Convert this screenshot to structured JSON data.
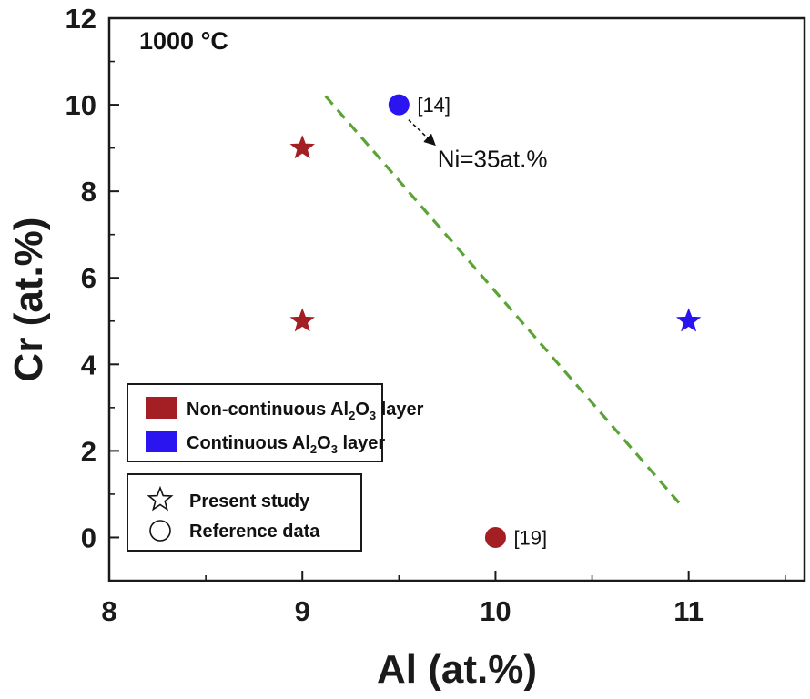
{
  "chart_data": {
    "type": "scatter",
    "title": "",
    "panel_label": "1000 °C",
    "xlabel": "Al (at.%)",
    "ylabel": "Cr (at.%)",
    "xlim": [
      8,
      11.6
    ],
    "ylim": [
      -1,
      12
    ],
    "xticks": [
      8,
      9,
      10,
      11
    ],
    "yticks": [
      0,
      2,
      4,
      6,
      8,
      10,
      12
    ],
    "grid": false,
    "colors": {
      "non_continuous": "#A31F24",
      "continuous": "#2A14F0",
      "boundary": "#5BA336",
      "axis": "#1a1a1a"
    },
    "points": [
      {
        "x": 9.0,
        "y": 9,
        "marker": "star",
        "category": "non_continuous",
        "label": ""
      },
      {
        "x": 9.0,
        "y": 5,
        "marker": "star",
        "category": "non_continuous",
        "label": ""
      },
      {
        "x": 11.0,
        "y": 5,
        "marker": "star",
        "category": "continuous",
        "label": ""
      },
      {
        "x": 9.5,
        "y": 10,
        "marker": "circle",
        "category": "continuous",
        "label": "[14]"
      },
      {
        "x": 10.0,
        "y": 0,
        "marker": "circle",
        "category": "non_continuous",
        "label": "[19]"
      }
    ],
    "boundary_line": {
      "style": "dashed",
      "x": [
        9.12,
        10.95
      ],
      "y": [
        10.2,
        0.8
      ]
    },
    "annotations": [
      {
        "text": "Ni=35at.%",
        "x": 9.7,
        "y": 8.75,
        "arrow_from": [
          9.55,
          9.65
        ],
        "arrow_to": [
          9.68,
          9.1
        ]
      }
    ],
    "legend_color": {
      "placement": "lower-left",
      "entries": [
        {
          "pre": "Non-continuous Al",
          "s1": "2",
          "mid": "O",
          "s2": "3",
          "post": " layer",
          "color_key": "non_continuous"
        },
        {
          "pre": "Continuous Al",
          "s1": "2",
          "mid": "O",
          "s2": "3",
          "post": " layer",
          "color_key": "continuous"
        }
      ]
    },
    "legend_marker": {
      "placement": "lower-left",
      "entries": [
        {
          "marker": "star",
          "label": "Present study"
        },
        {
          "marker": "circle",
          "label": "Reference data"
        }
      ]
    }
  }
}
